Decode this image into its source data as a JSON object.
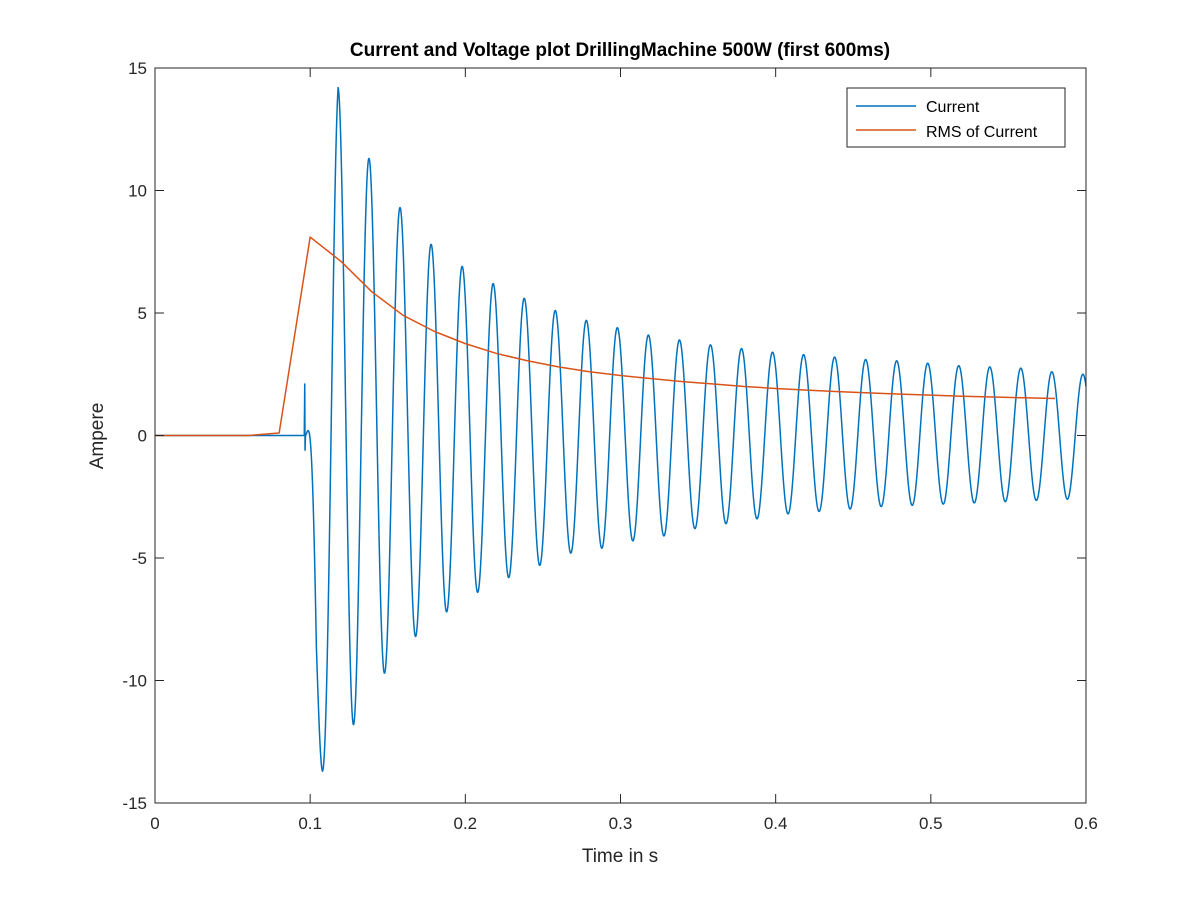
{
  "chart_data": {
    "type": "line",
    "title": "Current and Voltage plot DrillingMachine 500W (first 600ms)",
    "xlabel": "Time in s",
    "ylabel": "Ampere",
    "xlim": [
      0,
      0.6
    ],
    "ylim": [
      -15,
      15
    ],
    "xticks": [
      0,
      0.1,
      0.2,
      0.3,
      0.4,
      0.5,
      0.6
    ],
    "xtick_labels": [
      "0",
      "0.1",
      "0.2",
      "0.3",
      "0.4",
      "0.5",
      "0.6"
    ],
    "yticks": [
      15,
      10,
      5,
      0,
      -5,
      -10,
      -15
    ],
    "ytick_labels": [
      "15",
      "10",
      "5",
      "0",
      "-5",
      "-10",
      "-15"
    ],
    "grid": false,
    "legend_position": "top-right",
    "series": [
      {
        "name": "Current",
        "color": "#0072BD",
        "signal": {
          "zero_until": 0.095,
          "spike": {
            "t": 0.0965,
            "high": 2.1,
            "low": -0.6
          },
          "frequency_hz": 50,
          "peak_envelope": [
            [
              0.104,
              1.0
            ],
            [
              0.118,
              14.2
            ],
            [
              0.138,
              11.3
            ],
            [
              0.158,
              9.3
            ],
            [
              0.178,
              7.8
            ],
            [
              0.198,
              6.9
            ],
            [
              0.218,
              6.2
            ],
            [
              0.238,
              5.6
            ],
            [
              0.258,
              5.1
            ],
            [
              0.278,
              4.7
            ],
            [
              0.298,
              4.4
            ],
            [
              0.318,
              4.1
            ],
            [
              0.338,
              3.9
            ],
            [
              0.358,
              3.7
            ],
            [
              0.378,
              3.55
            ],
            [
              0.398,
              3.4
            ],
            [
              0.418,
              3.3
            ],
            [
              0.438,
              3.2
            ],
            [
              0.458,
              3.1
            ],
            [
              0.478,
              3.05
            ],
            [
              0.498,
              2.95
            ],
            [
              0.518,
              2.85
            ],
            [
              0.538,
              2.8
            ],
            [
              0.558,
              2.75
            ],
            [
              0.578,
              2.6
            ],
            [
              0.598,
              2.5
            ]
          ],
          "trough_envelope": [
            [
              0.108,
              -13.7
            ],
            [
              0.128,
              -11.8
            ],
            [
              0.148,
              -9.7
            ],
            [
              0.168,
              -8.2
            ],
            [
              0.188,
              -7.2
            ],
            [
              0.208,
              -6.4
            ],
            [
              0.228,
              -5.8
            ],
            [
              0.248,
              -5.3
            ],
            [
              0.268,
              -4.8
            ],
            [
              0.288,
              -4.6
            ],
            [
              0.308,
              -4.3
            ],
            [
              0.328,
              -4.1
            ],
            [
              0.348,
              -3.8
            ],
            [
              0.368,
              -3.6
            ],
            [
              0.388,
              -3.4
            ],
            [
              0.408,
              -3.2
            ],
            [
              0.428,
              -3.1
            ],
            [
              0.448,
              -3.0
            ],
            [
              0.468,
              -2.9
            ],
            [
              0.488,
              -2.85
            ],
            [
              0.508,
              -2.8
            ],
            [
              0.528,
              -2.75
            ],
            [
              0.548,
              -2.7
            ],
            [
              0.568,
              -2.65
            ],
            [
              0.588,
              -2.6
            ]
          ]
        }
      },
      {
        "name": "RMS of Current",
        "color": "#D95319",
        "x": [
          0,
          0.02,
          0.04,
          0.06,
          0.08,
          0.1,
          0.12,
          0.14,
          0.16,
          0.18,
          0.2,
          0.22,
          0.24,
          0.26,
          0.28,
          0.3,
          0.32,
          0.34,
          0.36,
          0.38,
          0.4,
          0.42,
          0.44,
          0.46,
          0.48,
          0.5,
          0.52,
          0.54,
          0.56,
          0.58
        ],
        "y": [
          0,
          0,
          0,
          0,
          0.1,
          8.1,
          7.1,
          5.85,
          4.9,
          4.25,
          3.75,
          3.35,
          3.05,
          2.8,
          2.6,
          2.45,
          2.32,
          2.2,
          2.1,
          2.0,
          1.92,
          1.85,
          1.79,
          1.74,
          1.69,
          1.65,
          1.6,
          1.57,
          1.54,
          1.51
        ]
      }
    ]
  }
}
